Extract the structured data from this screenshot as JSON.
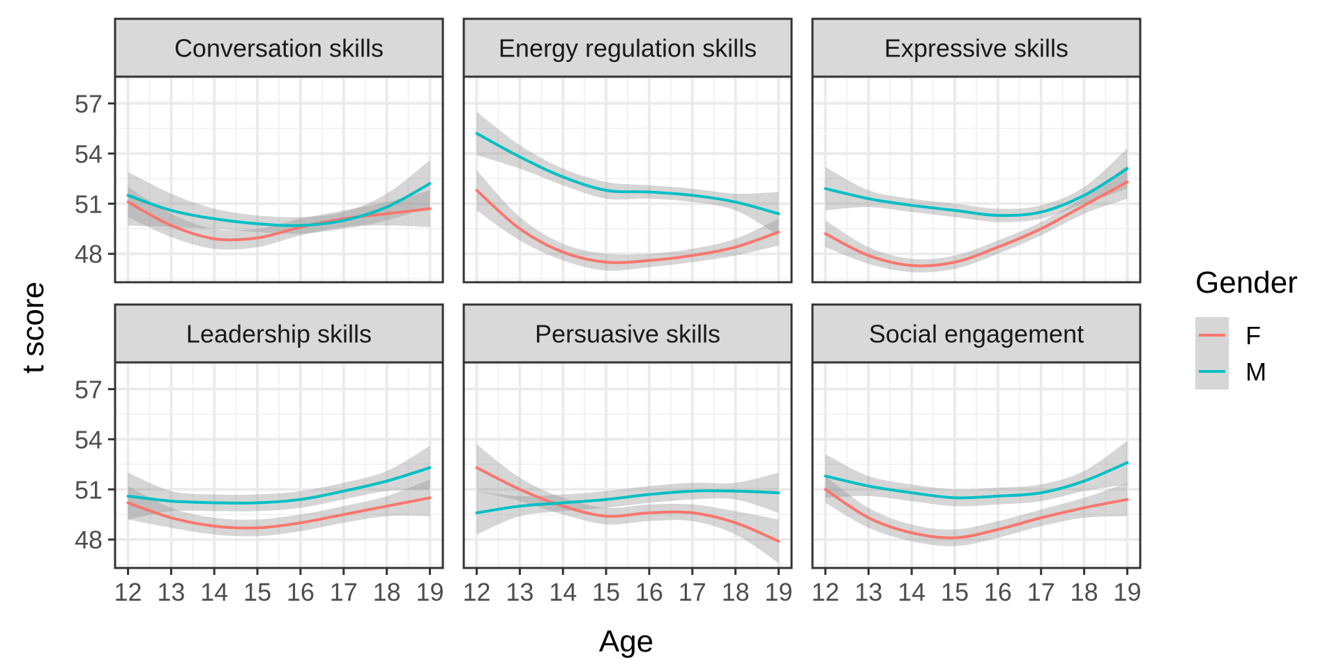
{
  "chart_data": {
    "type": "line",
    "xlabel": "Age",
    "ylabel": "t score",
    "xlim": [
      11.7,
      19.3
    ],
    "ylim": [
      46.3,
      58.6
    ],
    "xticks": [
      "12",
      "13",
      "14",
      "15",
      "16",
      "17",
      "18",
      "19"
    ],
    "yticks": [
      "48",
      "51",
      "54",
      "57"
    ],
    "grid": true,
    "legend": {
      "title": "Gender",
      "placement": "right",
      "entries": [
        "F",
        "M"
      ]
    },
    "colors": {
      "F": "#F8766D",
      "M": "#00BFC4",
      "ribbon": "#999999",
      "strip": "#D9D9D9"
    },
    "x": [
      12,
      13,
      14,
      15,
      16,
      17,
      18,
      19
    ],
    "panels": [
      {
        "title": "Conversation skills",
        "series": [
          {
            "name": "F",
            "values": [
              51.1,
              49.7,
              48.9,
              48.95,
              49.6,
              50.1,
              50.4,
              50.7
            ],
            "lower": [
              50.2,
              49.0,
              48.3,
              48.4,
              49.1,
              49.6,
              49.7,
              49.6
            ],
            "upper": [
              52.0,
              50.4,
              49.5,
              49.5,
              50.1,
              50.6,
              51.1,
              51.8
            ]
          },
          {
            "name": "M",
            "values": [
              51.5,
              50.6,
              50.1,
              49.8,
              49.7,
              50.0,
              50.8,
              52.2
            ],
            "lower": [
              49.7,
              49.6,
              49.5,
              49.3,
              49.2,
              49.5,
              50.0,
              50.8
            ],
            "upper": [
              52.9,
              51.6,
              50.7,
              50.3,
              50.2,
              50.5,
              51.6,
              53.6
            ]
          }
        ]
      },
      {
        "title": "Energy regulation skills",
        "series": [
          {
            "name": "F",
            "values": [
              51.8,
              49.5,
              48.1,
              47.5,
              47.6,
              47.9,
              48.4,
              49.3
            ],
            "lower": [
              50.6,
              48.8,
              47.6,
              47.0,
              47.2,
              47.5,
              47.9,
              48.5
            ],
            "upper": [
              53.0,
              50.2,
              48.6,
              48.0,
              48.0,
              48.3,
              48.9,
              50.1
            ]
          },
          {
            "name": "M",
            "values": [
              55.2,
              53.8,
              52.6,
              51.8,
              51.7,
              51.5,
              51.1,
              50.4
            ],
            "lower": [
              53.9,
              53.1,
              52.1,
              51.3,
              51.3,
              51.1,
              50.6,
              49.1
            ],
            "upper": [
              56.5,
              54.5,
              53.1,
              52.3,
              52.1,
              51.9,
              51.6,
              51.7
            ]
          }
        ]
      },
      {
        "title": "Expressive skills",
        "series": [
          {
            "name": "F",
            "values": [
              49.2,
              47.9,
              47.3,
              47.5,
              48.4,
              49.5,
              50.9,
              52.3
            ],
            "lower": [
              48.4,
              47.4,
              46.9,
              47.1,
              48.0,
              49.1,
              50.4,
              51.3
            ],
            "upper": [
              50.0,
              48.4,
              47.7,
              47.9,
              48.8,
              49.9,
              51.4,
              53.3
            ]
          },
          {
            "name": "M",
            "values": [
              51.9,
              51.3,
              50.9,
              50.6,
              50.3,
              50.5,
              51.5,
              53.1
            ],
            "lower": [
              50.6,
              50.8,
              50.5,
              50.2,
              49.9,
              50.1,
              51.0,
              51.9
            ],
            "upper": [
              53.2,
              51.8,
              51.3,
              51.0,
              50.7,
              50.9,
              52.0,
              54.3
            ]
          }
        ]
      },
      {
        "title": "Leadership skills",
        "series": [
          {
            "name": "F",
            "values": [
              50.2,
              49.3,
              48.8,
              48.7,
              49.0,
              49.5,
              50.0,
              50.5
            ],
            "lower": [
              49.2,
              48.7,
              48.3,
              48.2,
              48.5,
              49.0,
              49.4,
              49.4
            ],
            "upper": [
              51.2,
              49.9,
              49.3,
              49.2,
              49.5,
              50.0,
              50.6,
              51.6
            ]
          },
          {
            "name": "M",
            "values": [
              50.6,
              50.3,
              50.2,
              50.2,
              50.4,
              50.9,
              51.5,
              52.3
            ],
            "lower": [
              49.2,
              49.7,
              49.7,
              49.7,
              49.9,
              50.4,
              50.9,
              51.0
            ],
            "upper": [
              52.0,
              50.9,
              50.7,
              50.7,
              50.9,
              51.4,
              52.1,
              53.6
            ]
          }
        ]
      },
      {
        "title": "Persuasive skills",
        "series": [
          {
            "name": "F",
            "values": [
              52.3,
              51.0,
              50.0,
              49.4,
              49.6,
              49.6,
              49.0,
              47.9
            ],
            "lower": [
              50.9,
              50.3,
              49.5,
              48.9,
              49.1,
              49.1,
              48.3,
              46.6
            ],
            "upper": [
              53.7,
              51.7,
              50.5,
              49.9,
              50.1,
              50.1,
              49.7,
              49.2
            ]
          },
          {
            "name": "M",
            "values": [
              49.6,
              50.0,
              50.2,
              50.4,
              50.7,
              50.9,
              50.9,
              50.8
            ],
            "lower": [
              48.3,
              49.4,
              49.7,
              49.9,
              50.2,
              50.4,
              50.4,
              49.6
            ],
            "upper": [
              50.9,
              50.6,
              50.7,
              50.9,
              51.2,
              51.4,
              51.4,
              52.0
            ]
          }
        ]
      },
      {
        "title": "Social engagement",
        "series": [
          {
            "name": "F",
            "values": [
              51.0,
              49.3,
              48.4,
              48.1,
              48.6,
              49.3,
              49.9,
              50.4
            ],
            "lower": [
              50.2,
              48.7,
              47.9,
              47.6,
              48.1,
              48.8,
              49.3,
              49.4
            ],
            "upper": [
              51.8,
              49.9,
              48.9,
              48.6,
              49.1,
              49.8,
              50.5,
              51.4
            ]
          },
          {
            "name": "M",
            "values": [
              51.8,
              51.2,
              50.8,
              50.5,
              50.6,
              50.8,
              51.5,
              52.6
            ],
            "lower": [
              50.5,
              50.6,
              50.3,
              50.0,
              50.1,
              50.3,
              50.9,
              51.3
            ],
            "upper": [
              53.1,
              51.8,
              51.3,
              51.0,
              51.1,
              51.3,
              52.1,
              53.9
            ]
          }
        ]
      }
    ]
  }
}
